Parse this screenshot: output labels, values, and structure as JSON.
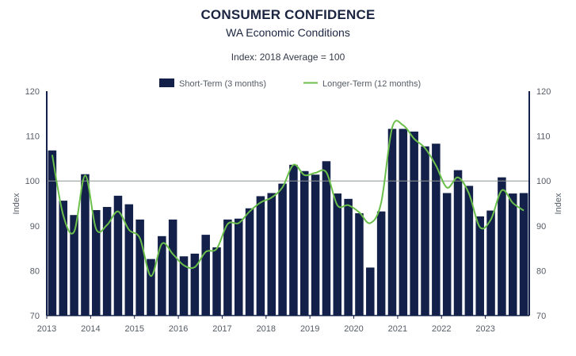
{
  "header": {
    "title": "CONSUMER CONFIDENCE",
    "subtitle": "WA Economic Conditions",
    "note": "Index: 2018 Average = 100"
  },
  "colors": {
    "bar": "#13204a",
    "line": "#6abf4b",
    "reference": "#8e9690",
    "axis": "#13204a",
    "text": "#555c66"
  },
  "chart_data": {
    "type": "bar",
    "title": "CONSUMER CONFIDENCE",
    "subtitle": "WA Economic Conditions",
    "ylabel": "Index",
    "ylabel_right": "Index",
    "ylim": [
      70,
      120
    ],
    "yticks": [
      70,
      80,
      90,
      100,
      110,
      120
    ],
    "x_ticks": [
      "2013",
      "2014",
      "2015",
      "2016",
      "2017",
      "2018",
      "2019",
      "2020",
      "2021",
      "2022",
      "2023"
    ],
    "reference_line": 100,
    "legend_position": "top",
    "grid": false,
    "categories": [
      "2013 Q1",
      "2013 Q2",
      "2013 Q3",
      "2013 Q4",
      "2014 Q1",
      "2014 Q2",
      "2014 Q3",
      "2014 Q4",
      "2015 Q1",
      "2015 Q2",
      "2015 Q3",
      "2015 Q4",
      "2016 Q1",
      "2016 Q2",
      "2016 Q3",
      "2016 Q4",
      "2017 Q1",
      "2017 Q2",
      "2017 Q3",
      "2017 Q4",
      "2018 Q1",
      "2018 Q2",
      "2018 Q3",
      "2018 Q4",
      "2019 Q1",
      "2019 Q2",
      "2019 Q3",
      "2019 Q4",
      "2020 Q1",
      "2020 Q2",
      "2020 Q3",
      "2020 Q4",
      "2021 Q1",
      "2021 Q2",
      "2021 Q3",
      "2021 Q4",
      "2022 Q1",
      "2022 Q2",
      "2022 Q3",
      "2022 Q4",
      "2023 Q1",
      "2023 Q2",
      "2023 Q3",
      "2023 Q4"
    ],
    "series": [
      {
        "name": "Short-Term (3 months)",
        "type": "bar",
        "values": [
          106.8,
          95.6,
          92.4,
          101.5,
          93.5,
          94.2,
          96.7,
          94.8,
          91.4,
          82.6,
          87.7,
          91.4,
          83.2,
          83.8,
          88.0,
          85.2,
          91.4,
          91.6,
          93.9,
          96.6,
          97.3,
          99.4,
          103.6,
          102.2,
          101.4,
          104.4,
          97.2,
          96.0,
          92.8,
          80.7,
          93.2,
          111.6,
          111.6,
          111.0,
          107.7,
          108.3,
          97.3,
          102.4,
          98.9,
          92.1,
          93.4,
          100.8,
          97.2,
          97.3
        ]
      },
      {
        "name": "Longer-Term (12 months)",
        "type": "line",
        "values": [
          105.8,
          92.4,
          88.7,
          101.2,
          89.3,
          90.2,
          93.2,
          89.1,
          87.2,
          78.8,
          86.0,
          83.7,
          81.2,
          80.8,
          84.2,
          84.9,
          90.4,
          90.6,
          93.2,
          95.2,
          96.3,
          98.6,
          103.6,
          101.3,
          101.8,
          101.9,
          94.6,
          94.6,
          93.0,
          90.6,
          95.2,
          111.9,
          112.4,
          109.4,
          107.3,
          103.4,
          98.5,
          100.8,
          97.2,
          89.7,
          91.4,
          97.9,
          95.1,
          93.4
        ]
      }
    ]
  }
}
